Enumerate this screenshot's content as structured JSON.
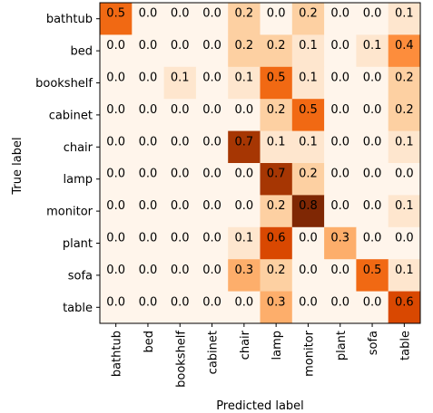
{
  "chart_data": {
    "type": "heatmap",
    "title": "",
    "xlabel": "Predicted label",
    "ylabel": "True label",
    "x_categories": [
      "bathtub",
      "bed",
      "bookshelf",
      "cabinet",
      "chair",
      "lamp",
      "monitor",
      "plant",
      "sofa",
      "table"
    ],
    "y_categories": [
      "bathtub",
      "bed",
      "bookshelf",
      "cabinet",
      "chair",
      "lamp",
      "monitor",
      "plant",
      "sofa",
      "table"
    ],
    "values": [
      [
        0.5,
        0.0,
        0.0,
        0.0,
        0.2,
        0.0,
        0.2,
        0.0,
        0.0,
        0.1
      ],
      [
        0.0,
        0.0,
        0.0,
        0.0,
        0.2,
        0.2,
        0.1,
        0.0,
        0.1,
        0.4
      ],
      [
        0.0,
        0.0,
        0.1,
        0.0,
        0.1,
        0.5,
        0.1,
        0.0,
        0.0,
        0.2
      ],
      [
        0.0,
        0.0,
        0.0,
        0.0,
        0.0,
        0.2,
        0.5,
        0.0,
        0.0,
        0.2
      ],
      [
        0.0,
        0.0,
        0.0,
        0.0,
        0.7,
        0.1,
        0.1,
        0.0,
        0.0,
        0.1
      ],
      [
        0.0,
        0.0,
        0.0,
        0.0,
        0.0,
        0.7,
        0.2,
        0.0,
        0.0,
        0.0
      ],
      [
        0.0,
        0.0,
        0.0,
        0.0,
        0.0,
        0.2,
        0.8,
        0.0,
        0.0,
        0.1
      ],
      [
        0.0,
        0.0,
        0.0,
        0.0,
        0.1,
        0.6,
        0.0,
        0.3,
        0.0,
        0.0
      ],
      [
        0.0,
        0.0,
        0.0,
        0.0,
        0.3,
        0.2,
        0.0,
        0.0,
        0.5,
        0.1
      ],
      [
        0.0,
        0.0,
        0.0,
        0.0,
        0.0,
        0.3,
        0.0,
        0.0,
        0.0,
        0.6
      ]
    ],
    "colormap": "Oranges",
    "grid": false
  }
}
